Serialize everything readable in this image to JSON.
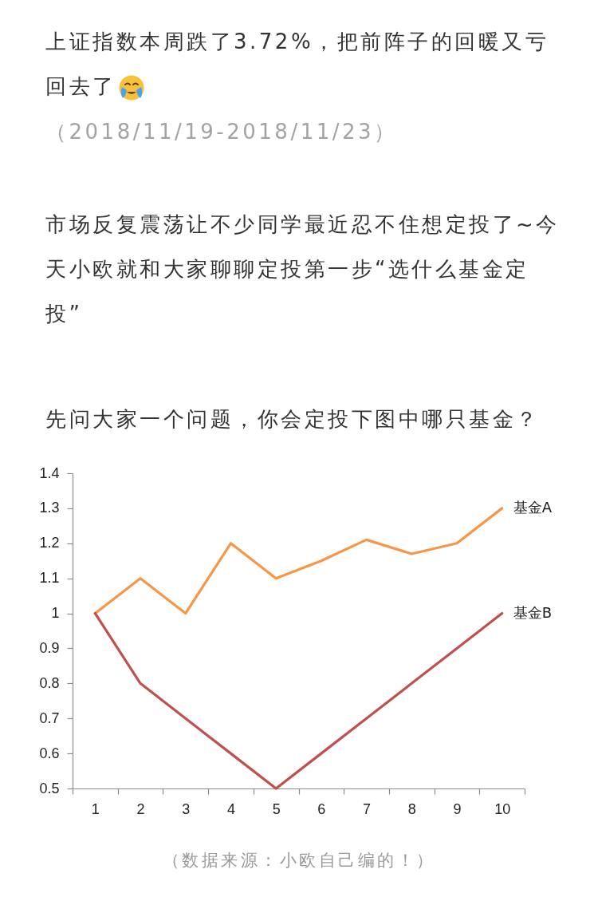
{
  "chart_data": {
    "type": "line",
    "title": "上证指数本周跌了3.72%，把前阵子的回暖又亏回去了",
    "subtitle": "（2018/11/19-2018/11/23）",
    "annotations": [
      "市场反复震荡让不少同学最近忍不住想定投了~今天小欧就和大家聊聊定投第一步“选什么基金定投”",
      "先问大家一个问题，你会定投下图中哪只基金？",
      "（数据来源：小欧自己编的！）"
    ],
    "categories": [
      "1",
      "2",
      "3",
      "4",
      "5",
      "6",
      "7",
      "8",
      "9",
      "10"
    ],
    "series": [
      {
        "name": "基金A",
        "color": "#f79646",
        "values": [
          1.0,
          1.1,
          1.0,
          1.2,
          1.1,
          1.15,
          1.21,
          1.17,
          1.2,
          1.3
        ]
      },
      {
        "name": "基金B",
        "color": "#c0504d",
        "values": [
          1.0,
          0.8,
          0.7,
          0.6,
          0.5,
          0.6,
          0.7,
          0.8,
          0.9,
          1.0
        ]
      }
    ],
    "ylim": [
      0.5,
      1.4
    ],
    "yticks": [
      0.5,
      0.6,
      0.7,
      0.8,
      0.9,
      1,
      1.1,
      1.2,
      1.3,
      1.4
    ],
    "line_style": "solid"
  }
}
